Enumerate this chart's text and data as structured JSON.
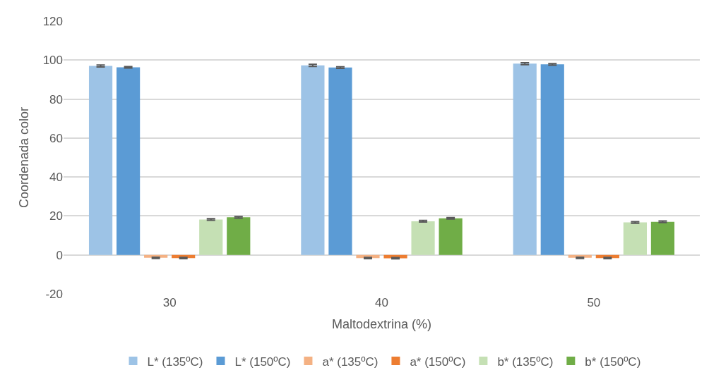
{
  "chart_data": {
    "type": "bar",
    "xlabel": "Maltodextrina (%)",
    "ylabel": "Coordenada color",
    "categories": [
      "30",
      "40",
      "50"
    ],
    "series": [
      {
        "name": "L* (135ºC)",
        "color": "#9dc3e6",
        "values": [
          97.0,
          97.3,
          98.2
        ],
        "errors": [
          0.5,
          0.5,
          0.5
        ]
      },
      {
        "name": "L* (150ºC)",
        "color": "#5b9bd5",
        "values": [
          96.3,
          96.2,
          97.8
        ],
        "errors": [
          0.4,
          0.4,
          0.4
        ]
      },
      {
        "name": "a* (135ºC)",
        "color": "#f4b183",
        "values": [
          -1.5,
          -1.6,
          -1.5
        ],
        "errors": [
          0.3,
          0.3,
          0.3
        ]
      },
      {
        "name": "a* (150ºC)",
        "color": "#ed7d31",
        "values": [
          -1.6,
          -1.7,
          -1.6
        ],
        "errors": [
          0.3,
          0.3,
          0.3
        ]
      },
      {
        "name": "b* (135ºC)",
        "color": "#c5e0b4",
        "values": [
          18.2,
          17.3,
          16.7
        ],
        "errors": [
          0.4,
          0.4,
          0.4
        ]
      },
      {
        "name": "b* (150ºC)",
        "color": "#70ad47",
        "values": [
          19.3,
          18.8,
          17.0
        ],
        "errors": [
          0.4,
          0.4,
          0.4
        ]
      }
    ],
    "ylim": [
      -20,
      120
    ],
    "yticks": [
      -20,
      0,
      20,
      40,
      60,
      80,
      100,
      120
    ],
    "grid": "y",
    "legend": "bottom"
  }
}
